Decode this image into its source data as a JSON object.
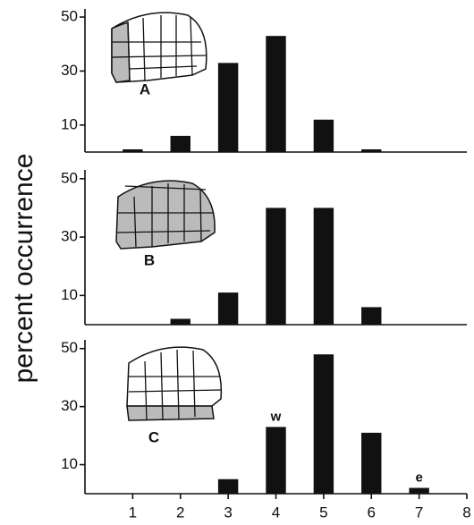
{
  "ylabel": "percent occurrence",
  "chart_data": [
    {
      "type": "bar",
      "panel_label": "A",
      "x": [
        1,
        2,
        3,
        4,
        5,
        6
      ],
      "values": [
        1,
        6,
        33,
        43,
        12,
        1
      ],
      "color": "#111111",
      "xlim": [
        0,
        8
      ],
      "ylim": [
        0,
        53
      ],
      "yticks": [
        10,
        30,
        50
      ]
    },
    {
      "type": "bar",
      "panel_label": "B",
      "x": [
        2,
        3,
        4,
        5,
        6
      ],
      "values": [
        2,
        11,
        40,
        40,
        6
      ],
      "color": "#111111",
      "xlim": [
        0,
        8
      ],
      "ylim": [
        0,
        53
      ],
      "yticks": [
        10,
        30,
        50
      ]
    },
    {
      "type": "bar",
      "panel_label": "C",
      "x": [
        3,
        4,
        5,
        6,
        7
      ],
      "values": [
        5,
        23,
        48,
        21,
        2
      ],
      "color": "#111111",
      "xlim": [
        0,
        8
      ],
      "ylim": [
        0,
        53
      ],
      "yticks": [
        10,
        30,
        50
      ],
      "xticks": [
        1,
        2,
        3,
        4,
        5,
        6,
        7,
        8
      ],
      "annotations": [
        {
          "text": "w",
          "x": 4
        },
        {
          "text": "e",
          "x": 7
        }
      ]
    }
  ]
}
